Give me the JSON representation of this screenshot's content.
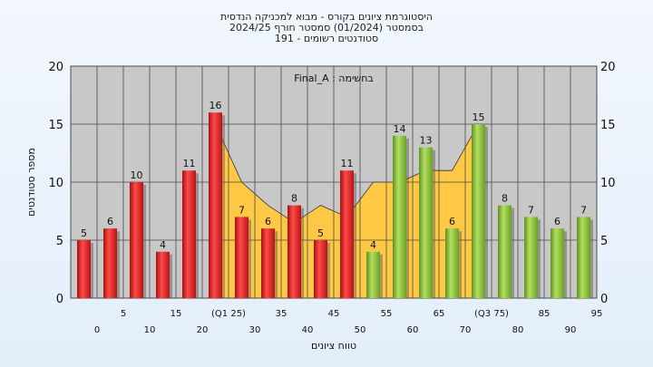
{
  "chart_data": {
    "type": "bar",
    "title_lines": [
      "היסטוגרמת ציונים בקורס - מבוא למכניקה הנדסית",
      "בסמסטר  (01/2024)  סמסטר חורף 2024/25",
      "סטודנטים רשומים - 191"
    ],
    "annotation": "בחשימה : Final_A",
    "xlabel": "טווח ציונים",
    "ylabel": "מספר סטודנטים",
    "ylim": [
      0,
      20
    ],
    "yticks": [
      0,
      5,
      10,
      15,
      20
    ],
    "grid": true,
    "categories": [
      "0",
      "5",
      "10",
      "15",
      "20",
      "25",
      "30",
      "35",
      "40",
      "45",
      "50",
      "55",
      "60",
      "65",
      "70",
      "75",
      "80",
      "85",
      "90",
      "95"
    ],
    "x_tick_labels": [
      "0",
      "5",
      "10",
      "15",
      "20",
      "(Q1 25)",
      "30",
      "35",
      "40",
      "45",
      "50",
      "55",
      "60",
      "65",
      "70",
      "(Q3 75)",
      "80",
      "85",
      "90",
      "95"
    ],
    "values": [
      5,
      6,
      10,
      4,
      11,
      16,
      7,
      6,
      8,
      5,
      11,
      4,
      14,
      13,
      6,
      15,
      8,
      7,
      6,
      7
    ],
    "bar_colors": [
      "red",
      "red",
      "red",
      "red",
      "red",
      "red",
      "red",
      "red",
      "red",
      "red",
      "red",
      "green",
      "green",
      "green",
      "green",
      "green",
      "green",
      "green",
      "green",
      "green"
    ],
    "band_values": [
      null,
      null,
      null,
      null,
      null,
      15,
      10,
      8,
      6.5,
      8,
      7,
      10,
      10,
      11,
      11,
      15,
      null,
      null,
      null,
      null
    ],
    "colors": {
      "red_bar": "#e02020",
      "green_bar": "#8cc43a",
      "band": "#ffc845",
      "plot_bg": "#c8c8c8",
      "grid": "#4a4a4a"
    }
  }
}
